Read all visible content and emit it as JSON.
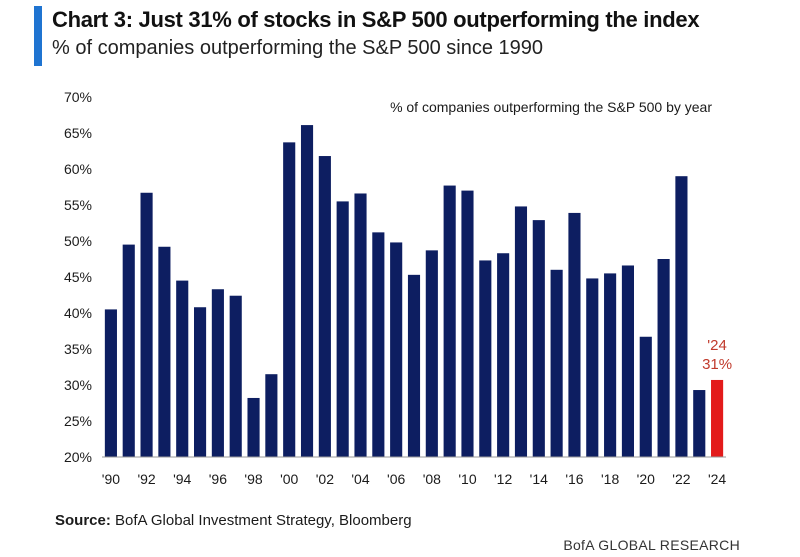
{
  "header": {
    "title": "Chart 3: Just 31% of stocks in S&P 500 outperforming the index",
    "subtitle": "% of companies outperforming the S&P 500 since 1990"
  },
  "footer": {
    "source_label": "Source:",
    "source_text": " BofA Global Investment Strategy, Bloomberg",
    "brand": "BofA GLOBAL RESEARCH"
  },
  "colors": {
    "accent": "#1f74d1",
    "bar": "#0d1e61",
    "highlight": "#e31b1b",
    "text": "#1b1b1b"
  },
  "chart_data": {
    "type": "bar",
    "title": "% of companies outperforming the S&P 500 by year",
    "xlabel": "",
    "ylabel": "",
    "ylim": [
      20,
      70
    ],
    "y_unit": "%",
    "y_ticks": [
      "20%",
      "25%",
      "30%",
      "35%",
      "40%",
      "45%",
      "50%",
      "55%",
      "60%",
      "65%",
      "70%"
    ],
    "x_tick_labels": [
      "'90",
      "'92",
      "'94",
      "'96",
      "'98",
      "'00",
      "'02",
      "'04",
      "'06",
      "'08",
      "'10",
      "'12",
      "'14",
      "'16",
      "'18",
      "'20",
      "'22",
      "'24"
    ],
    "categories": [
      "1990",
      "1991",
      "1992",
      "1993",
      "1994",
      "1995",
      "1996",
      "1997",
      "1998",
      "1999",
      "2000",
      "2001",
      "2002",
      "2003",
      "2004",
      "2005",
      "2006",
      "2007",
      "2008",
      "2009",
      "2010",
      "2011",
      "2012",
      "2013",
      "2014",
      "2015",
      "2016",
      "2017",
      "2018",
      "2019",
      "2020",
      "2021",
      "2022",
      "2023",
      "2024"
    ],
    "values": [
      40.5,
      49.5,
      56.7,
      49.2,
      44.5,
      40.8,
      43.3,
      42.4,
      28.2,
      31.5,
      63.7,
      66.1,
      61.8,
      55.5,
      56.6,
      51.2,
      49.8,
      45.3,
      48.7,
      57.7,
      57.0,
      47.3,
      48.3,
      54.8,
      52.9,
      46.0,
      53.9,
      44.8,
      45.5,
      46.6,
      36.7,
      47.5,
      59.0,
      29.3,
      30.7
    ],
    "highlight": {
      "category": "2024",
      "label_year": "'24",
      "label_value": "31%"
    },
    "grid": false,
    "legend": "none"
  }
}
